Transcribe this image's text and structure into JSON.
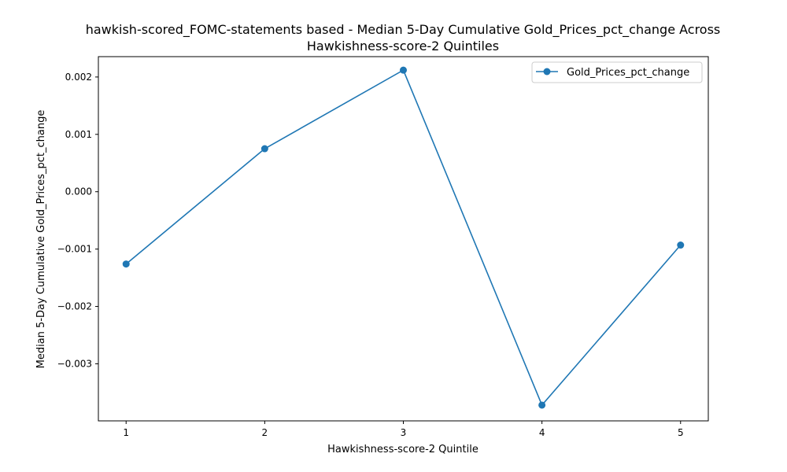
{
  "chart_data": {
    "type": "line",
    "title_lines": [
      "hawkish-scored_FOMC-statements based - Median 5-Day Cumulative Gold_Prices_pct_change Across",
      "Hawkishness-score-2 Quintiles"
    ],
    "xlabel": "Hawkishness-score-2 Quintile",
    "ylabel": "Median 5-Day Cumulative Gold_Prices_pct_change",
    "x": [
      1,
      2,
      3,
      4,
      5
    ],
    "x_ticks": [
      "1",
      "2",
      "3",
      "4",
      "5"
    ],
    "xlim": [
      0.8,
      5.2
    ],
    "ylim": [
      -0.003995,
      0.002355
    ],
    "y_ticks": [
      -0.003,
      -0.002,
      -0.001,
      0.0,
      0.001,
      0.002
    ],
    "y_tick_labels": [
      "−0.003",
      "−0.002",
      "−0.001",
      "0.000",
      "0.001",
      "0.002"
    ],
    "series": [
      {
        "name": "Gold_Prices_pct_change",
        "values": [
          -0.00126,
          0.00075,
          0.00212,
          -0.00372,
          -0.00093
        ],
        "color": "#1f77b4",
        "marker": "circle"
      }
    ],
    "legend_position": "top-right",
    "grid": false
  }
}
